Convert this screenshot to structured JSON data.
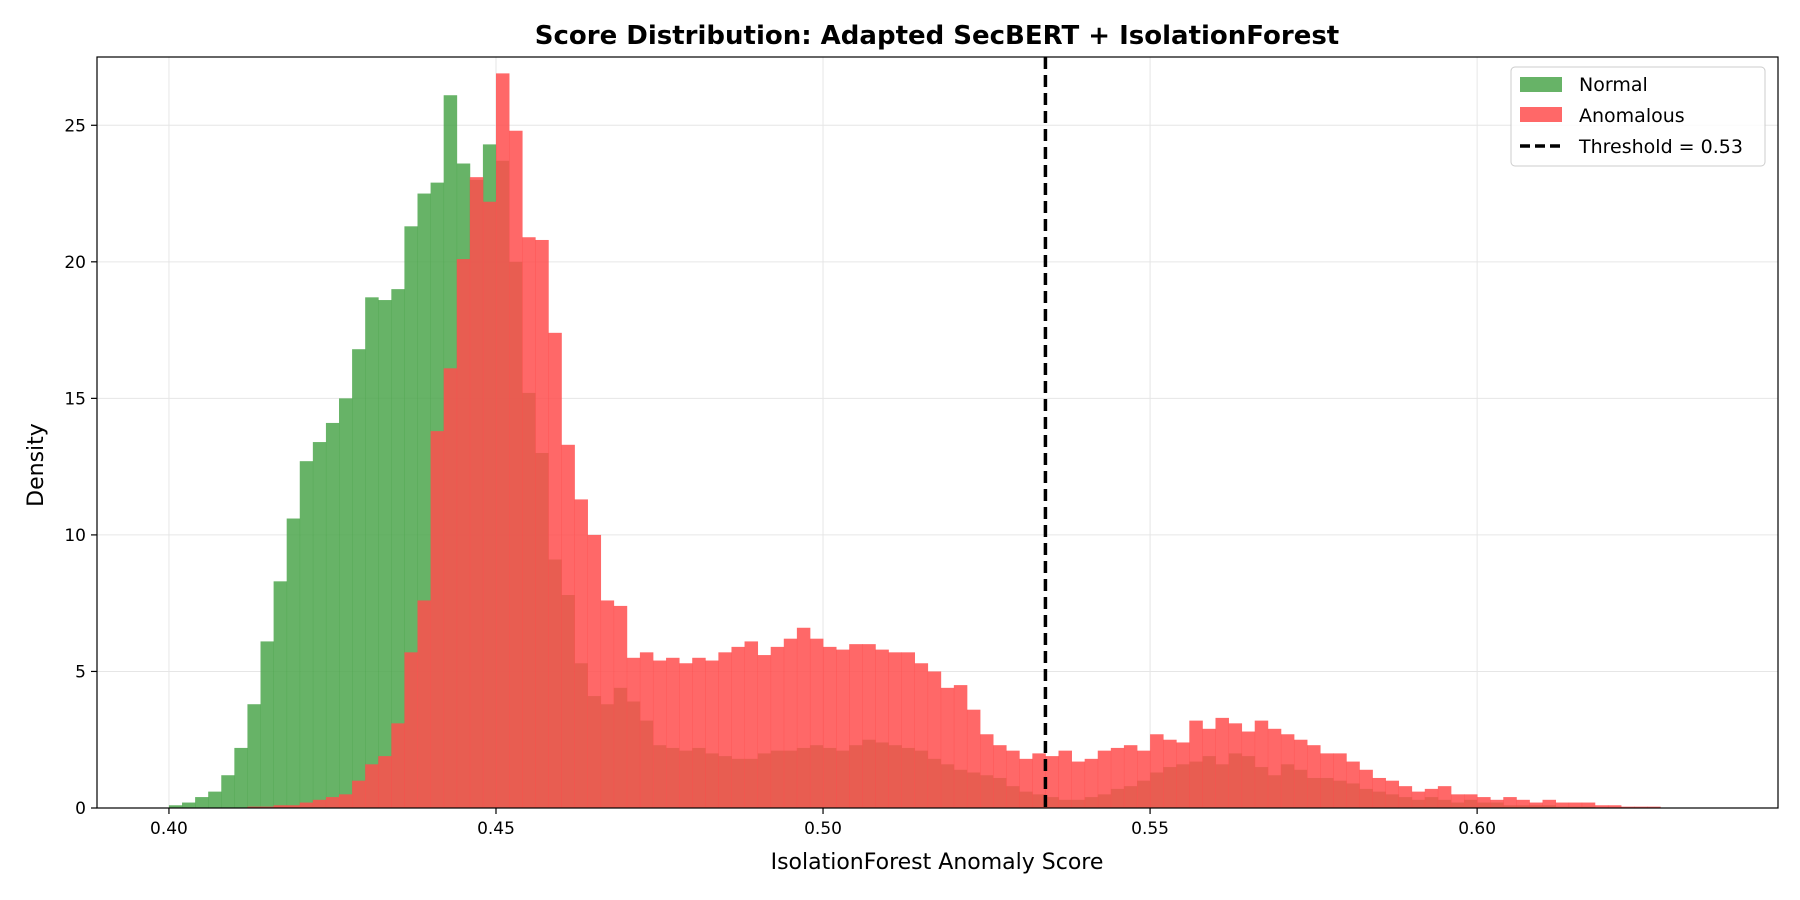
{
  "chart_data": {
    "type": "bar",
    "title": "Score Distribution: Adapted SecBERT + IsolationForest",
    "xlabel": "IsolationForest Anomaly Score",
    "ylabel": "Density",
    "xlim": [
      0.389,
      0.646
    ],
    "ylim": [
      0,
      27.5
    ],
    "xticks": [
      0.4,
      0.45,
      0.5,
      0.55,
      0.6
    ],
    "xtick_labels": [
      "0.40",
      "0.45",
      "0.50",
      "0.55",
      "0.60"
    ],
    "yticks": [
      0,
      5,
      10,
      15,
      20,
      25
    ],
    "ytick_labels": [
      "0",
      "5",
      "10",
      "15",
      "20",
      "25"
    ],
    "grid": true,
    "legend_position": "top-right",
    "bin_start": 0.398,
    "bin_width": 0.002,
    "series": [
      {
        "name": "Normal",
        "color": "#4ca64c",
        "opacity": 0.85,
        "values": [
          0,
          0.1,
          0.2,
          0.4,
          0.6,
          1.2,
          2.2,
          3.8,
          6.1,
          8.3,
          10.6,
          12.7,
          13.4,
          14.1,
          15.0,
          16.8,
          18.7,
          18.6,
          19.0,
          21.3,
          22.5,
          22.9,
          26.1,
          23.6,
          23.0,
          24.3,
          23.7,
          20.0,
          15.2,
          13.0,
          9.1,
          7.8,
          5.3,
          4.1,
          3.8,
          4.4,
          3.9,
          3.2,
          2.3,
          2.2,
          2.1,
          2.2,
          2.0,
          1.9,
          1.8,
          1.8,
          2.0,
          2.1,
          2.1,
          2.2,
          2.3,
          2.2,
          2.1,
          2.3,
          2.5,
          2.4,
          2.3,
          2.2,
          2.1,
          1.8,
          1.6,
          1.4,
          1.3,
          1.2,
          1.1,
          0.8,
          0.6,
          0.5,
          0.4,
          0.3,
          0.3,
          0.4,
          0.5,
          0.7,
          0.8,
          1.0,
          1.3,
          1.5,
          1.6,
          1.7,
          1.9,
          1.6,
          2.0,
          1.9,
          1.5,
          1.2,
          1.6,
          1.4,
          1.1,
          1.1,
          1.0,
          0.9,
          0.7,
          0.6,
          0.5,
          0.4,
          0.3,
          0.4,
          0.3,
          0.2,
          0.3,
          0.2,
          0.2,
          0.1,
          0.1,
          0.1,
          0.1,
          0.05,
          0.05,
          0.05,
          0,
          0,
          0,
          0,
          0,
          0
        ]
      },
      {
        "name": "Anomalous",
        "color": "#ff4d4d",
        "opacity": 0.85,
        "values": [
          0,
          0,
          0,
          0,
          0,
          0,
          0,
          0.05,
          0.05,
          0.1,
          0.1,
          0.2,
          0.3,
          0.4,
          0.5,
          1.0,
          1.6,
          1.9,
          3.1,
          5.7,
          7.6,
          13.8,
          16.1,
          20.1,
          23.1,
          22.2,
          26.9,
          24.8,
          20.9,
          20.8,
          17.4,
          13.3,
          11.3,
          10.0,
          7.6,
          7.4,
          5.5,
          5.7,
          5.4,
          5.5,
          5.3,
          5.5,
          5.4,
          5.7,
          5.9,
          6.1,
          5.6,
          5.9,
          6.2,
          6.6,
          6.2,
          5.9,
          5.8,
          6.0,
          6.0,
          5.8,
          5.7,
          5.7,
          5.3,
          5.0,
          4.4,
          4.5,
          3.6,
          2.7,
          2.3,
          2.1,
          1.8,
          2.0,
          1.9,
          2.1,
          1.7,
          1.8,
          2.1,
          2.2,
          2.3,
          2.1,
          2.7,
          2.5,
          2.4,
          3.2,
          2.9,
          3.3,
          3.1,
          2.8,
          3.2,
          2.9,
          2.7,
          2.5,
          2.3,
          2.0,
          2.0,
          1.7,
          1.4,
          1.1,
          1.0,
          0.8,
          0.6,
          0.7,
          0.8,
          0.5,
          0.5,
          0.4,
          0.3,
          0.4,
          0.3,
          0.2,
          0.3,
          0.2,
          0.2,
          0.2,
          0.1,
          0.1,
          0.05,
          0.05,
          0.05,
          0
        ]
      }
    ],
    "threshold": {
      "name": "Threshold = 0.53",
      "x": 0.534,
      "color": "#000000",
      "style": "dashed"
    }
  }
}
